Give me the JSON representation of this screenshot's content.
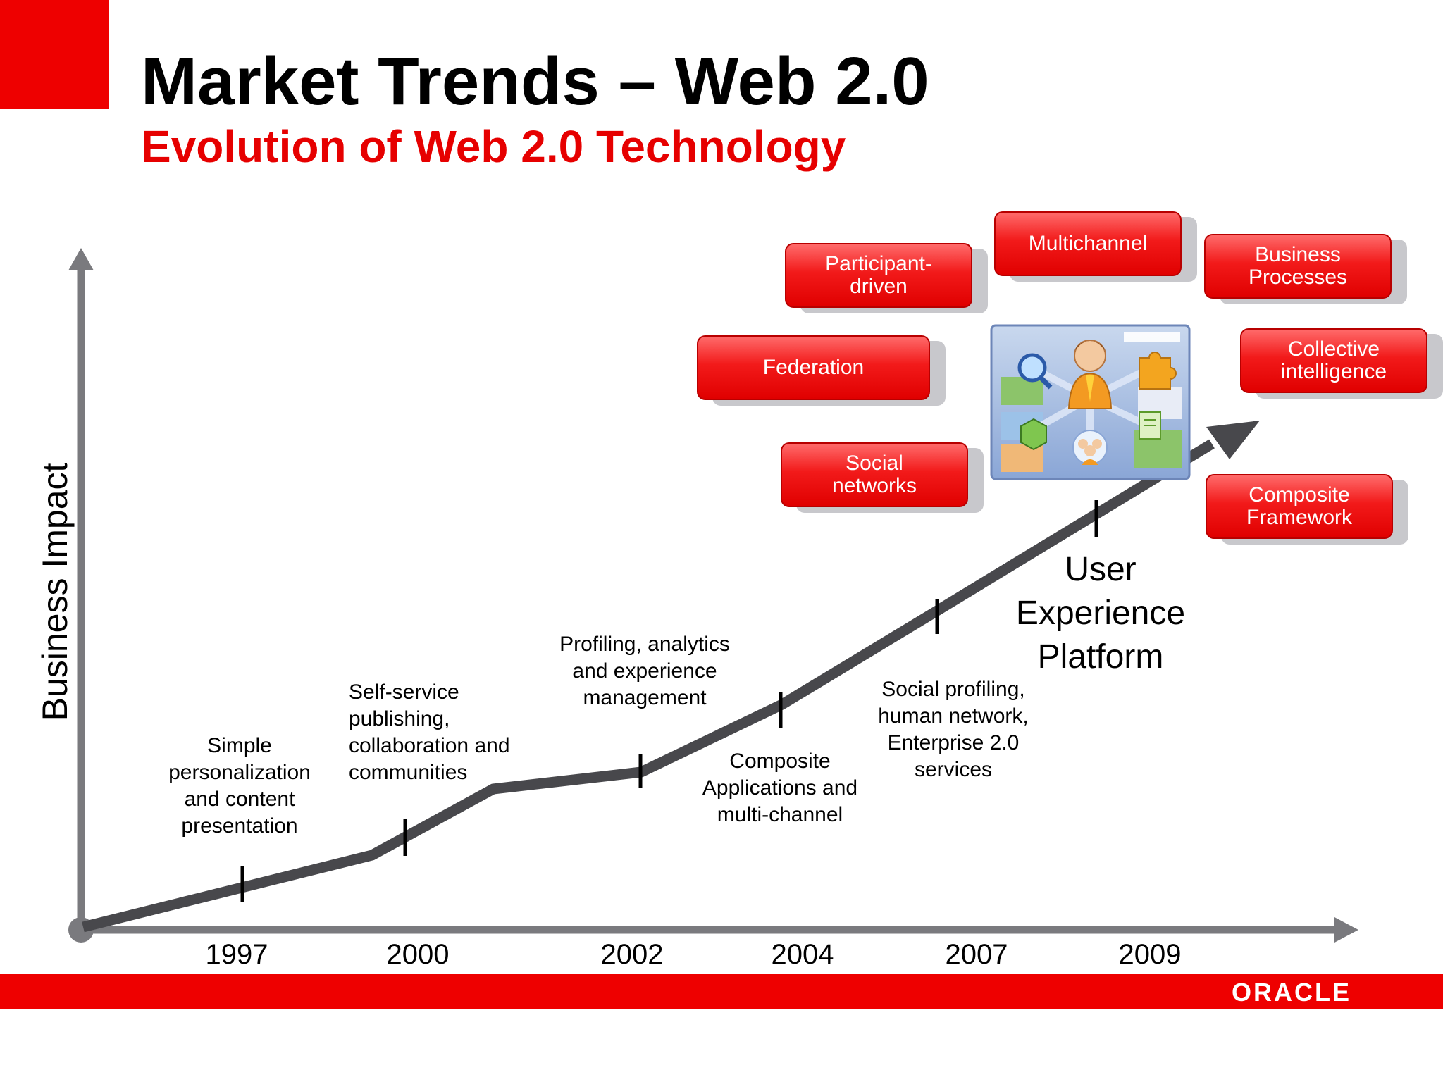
{
  "slide": {
    "title": "Market Trends – Web 2.0",
    "subtitle": "Evolution of Web 2.0 Technology",
    "brand": "ORACLE",
    "colors": {
      "accent": "#ee0000",
      "axis": "#7a7a7e",
      "trend": "#48484c",
      "pill_shadow": "#c8c8cc"
    }
  },
  "axes": {
    "y_label": "Business Impact"
  },
  "timeline": {
    "years": [
      "1997",
      "2000",
      "2002",
      "2004",
      "2007",
      "2009"
    ],
    "annotations": [
      "Simple\npersonalization\nand content\npresentation",
      "Self-service\npublishing,\ncollaboration and\ncommunities",
      "Profiling, analytics\nand experience\nmanagement",
      "Composite\nApplications and\nmulti-channel",
      "Social profiling,\nhuman network,\nEnterprise 2.0\nservices"
    ],
    "endpoint": "User\nExperience\nPlatform"
  },
  "capabilities": [
    "Participant-\ndriven",
    "Multichannel",
    "Business\nProcesses",
    "Federation",
    "Collective\nintelligence",
    "Social\nnetworks",
    "Composite\nFramework"
  ],
  "icon": "user-experience-platform-icon"
}
